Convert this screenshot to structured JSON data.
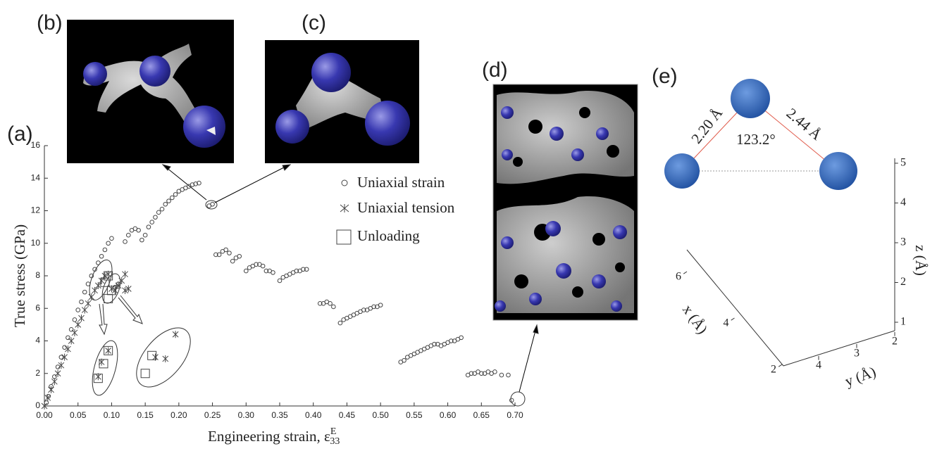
{
  "chart_data": {
    "type": "scatter",
    "panel_label": "(a)",
    "x_label": "Engineering strain, ε",
    "x_label_sup": "E",
    "x_label_sub": "33",
    "y_label": "True stress (GPa)",
    "xlim": [
      0,
      0.7
    ],
    "ylim": [
      0,
      16
    ],
    "xticks": [
      {
        "value": 0,
        "label": "0.00"
      },
      {
        "value": 0.05,
        "label": "0.05"
      },
      {
        "value": 0.1,
        "label": "0.10"
      },
      {
        "value": 0.15,
        "label": "0.15"
      },
      {
        "value": 0.2,
        "label": "0.20"
      },
      {
        "value": 0.25,
        "label": "0.25"
      },
      {
        "value": 0.3,
        "label": "0.30"
      },
      {
        "value": 0.35,
        "label": "0.35"
      },
      {
        "value": 0.4,
        "label": "0.40"
      },
      {
        "value": 0.45,
        "label": "0.45"
      },
      {
        "value": 0.5,
        "label": "0.50"
      },
      {
        "value": 0.55,
        "label": "0.55"
      },
      {
        "value": 0.6,
        "label": "0.60"
      },
      {
        "value": 0.65,
        "label": "0.65"
      },
      {
        "value": 0.7,
        "label": "0.70"
      }
    ],
    "yticks": [
      0,
      2,
      4,
      6,
      8,
      10,
      12,
      14,
      16
    ],
    "series": [
      {
        "name": "Uniaxial strain",
        "marker": "circle",
        "color": "#444444",
        "x": [
          0.003,
          0.006,
          0.01,
          0.015,
          0.02,
          0.025,
          0.03,
          0.035,
          0.04,
          0.045,
          0.05,
          0.055,
          0.06,
          0.065,
          0.07,
          0.075,
          0.08,
          0.085,
          0.09,
          0.095,
          0.1,
          0.105,
          0.11,
          0.12,
          0.125,
          0.13,
          0.135,
          0.14,
          0.145,
          0.15,
          0.155,
          0.16,
          0.165,
          0.17,
          0.175,
          0.18,
          0.185,
          0.19,
          0.195,
          0.2,
          0.205,
          0.21,
          0.215,
          0.22,
          0.225,
          0.23,
          0.245,
          0.25,
          0.255,
          0.26,
          0.265,
          0.27,
          0.275,
          0.28,
          0.285,
          0.29,
          0.3,
          0.305,
          0.31,
          0.315,
          0.32,
          0.325,
          0.33,
          0.335,
          0.34,
          0.35,
          0.355,
          0.36,
          0.365,
          0.37,
          0.375,
          0.38,
          0.385,
          0.39,
          0.41,
          0.415,
          0.42,
          0.425,
          0.43,
          0.44,
          0.445,
          0.45,
          0.455,
          0.46,
          0.465,
          0.47,
          0.475,
          0.48,
          0.485,
          0.49,
          0.495,
          0.5,
          0.53,
          0.535,
          0.54,
          0.545,
          0.55,
          0.555,
          0.56,
          0.565,
          0.57,
          0.575,
          0.58,
          0.585,
          0.59,
          0.595,
          0.6,
          0.605,
          0.61,
          0.615,
          0.62,
          0.63,
          0.635,
          0.64,
          0.645,
          0.65,
          0.655,
          0.66,
          0.665,
          0.67,
          0.68,
          0.69,
          0.695
        ],
        "values": [
          0.2,
          0.6,
          1.2,
          1.8,
          2.4,
          3.0,
          3.6,
          4.2,
          4.7,
          5.3,
          5.9,
          6.4,
          7.0,
          7.5,
          8.0,
          8.4,
          8.8,
          9.2,
          9.6,
          10.0,
          10.3,
          7.3,
          7.5,
          10.1,
          10.5,
          10.8,
          10.9,
          10.8,
          10.2,
          10.5,
          11.0,
          11.3,
          11.6,
          11.9,
          12.1,
          12.4,
          12.6,
          12.8,
          13.0,
          13.2,
          13.3,
          13.4,
          13.5,
          13.6,
          13.65,
          13.7,
          12.3,
          12.4,
          9.3,
          9.3,
          9.5,
          9.6,
          9.4,
          8.9,
          9.1,
          9.2,
          8.3,
          8.5,
          8.6,
          8.7,
          8.7,
          8.6,
          8.3,
          8.3,
          8.2,
          7.7,
          7.9,
          8.0,
          8.1,
          8.2,
          8.3,
          8.3,
          8.4,
          8.4,
          6.3,
          6.3,
          6.4,
          6.3,
          6.1,
          5.1,
          5.3,
          5.4,
          5.5,
          5.6,
          5.7,
          5.8,
          5.9,
          5.9,
          6.0,
          6.1,
          6.1,
          6.2,
          2.7,
          2.8,
          3.0,
          3.1,
          3.2,
          3.3,
          3.4,
          3.5,
          3.6,
          3.7,
          3.8,
          3.8,
          3.7,
          3.8,
          3.9,
          4.0,
          4.0,
          4.1,
          4.2,
          1.9,
          2.0,
          2.0,
          2.1,
          2.0,
          2.0,
          2.1,
          2.0,
          2.1,
          1.9,
          1.9,
          0.35
        ]
      },
      {
        "name": "Uniaxial tension",
        "marker": "x",
        "color": "#444444",
        "x": [
          0,
          0.005,
          0.01,
          0.015,
          0.02,
          0.025,
          0.03,
          0.035,
          0.04,
          0.045,
          0.05,
          0.055,
          0.06,
          0.065,
          0.07,
          0.075,
          0.08,
          0.085,
          0.09,
          0.095,
          0.1,
          0.105,
          0.11,
          0.115,
          0.12,
          0.12,
          0.125,
          0.08,
          0.085,
          0.095,
          0.165,
          0.18,
          0.195
        ],
        "values": [
          0,
          0.5,
          1.0,
          1.5,
          2.0,
          2.5,
          3.0,
          3.5,
          4.0,
          4.5,
          5.0,
          5.4,
          5.9,
          6.3,
          6.7,
          7.1,
          7.4,
          7.7,
          8.0,
          8.1,
          7.2,
          7.1,
          7.4,
          7.7,
          8.1,
          7.1,
          7.2,
          1.8,
          2.7,
          3.4,
          3.0,
          2.9,
          4.4
        ]
      },
      {
        "name": "Unloading",
        "marker": "square",
        "color": "#444444",
        "x": [
          0.09,
          0.095,
          0.1,
          0.095,
          0.095,
          0.088,
          0.08,
          0.16,
          0.15
        ],
        "values": [
          7.6,
          8.0,
          7.1,
          6.6,
          3.4,
          2.6,
          1.7,
          3.1,
          2.0
        ]
      }
    ]
  },
  "insets": [
    {
      "label": "(b)"
    },
    {
      "label": "(c)"
    },
    {
      "label": "(d)"
    }
  ],
  "panel_e": {
    "label": "(e)",
    "bond_lengths": [
      "2.20 Å",
      "2.44 Å"
    ],
    "angle": "123.2°",
    "x_axis": {
      "label": "x (Å)",
      "ticks": [
        2,
        4,
        6
      ]
    },
    "y_axis": {
      "label": "y (Å)",
      "ticks": [
        2,
        3,
        4
      ]
    },
    "z_axis": {
      "label": "z (Å)",
      "ticks": [
        1,
        2,
        3,
        4,
        5
      ]
    }
  }
}
